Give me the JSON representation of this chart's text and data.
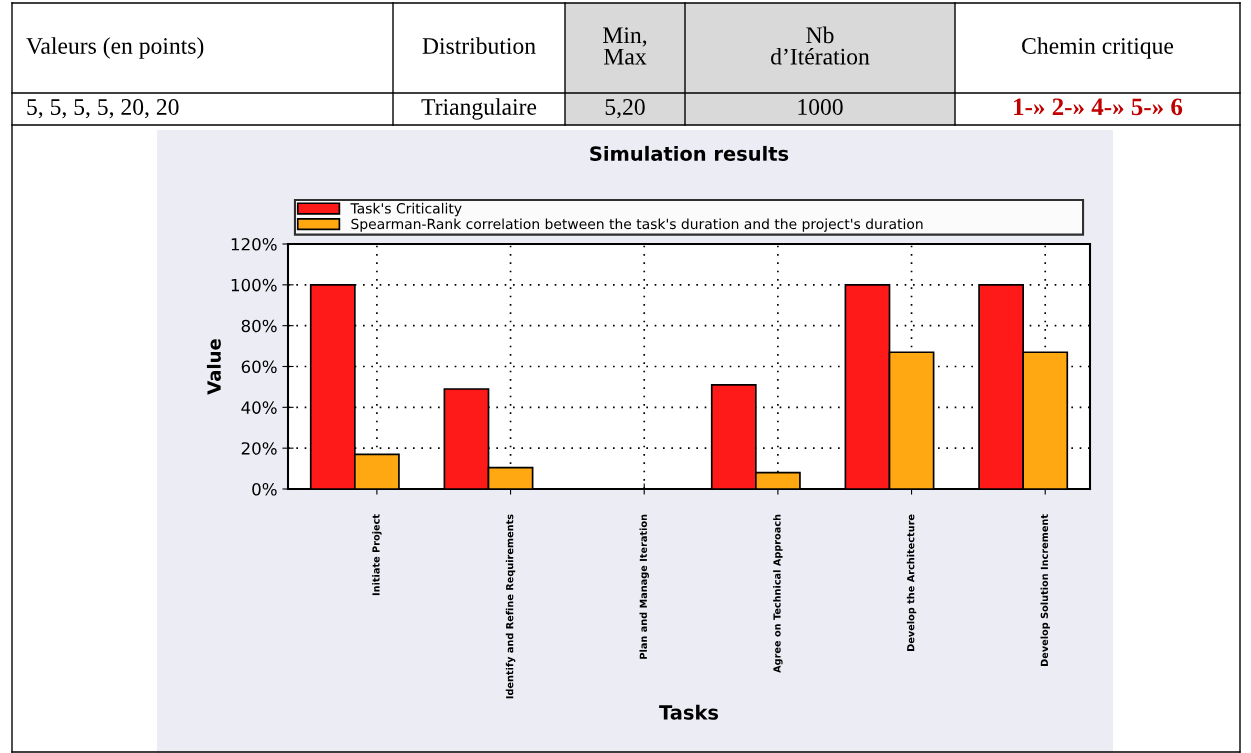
{
  "chart_data": {
    "type": "bar",
    "title": "Simulation results",
    "xlabel": "Tasks",
    "ylabel": "Value",
    "categories": [
      "Initiate Project",
      "Identify and Refine Requirements",
      "Plan and Manage Iteration",
      "Agree on Technical Approach",
      "Develop the Architecture",
      "Develop Solution Increment"
    ],
    "series": [
      {
        "name": "Task's Criticality",
        "color": "#ff1a1a",
        "values": [
          100,
          49,
          0,
          51,
          100,
          100
        ]
      },
      {
        "name": "Spearman-Rank correlation between the task's duration and the project's duration",
        "color": "#ffa812",
        "values": [
          17,
          10.5,
          0,
          8,
          67,
          67
        ]
      }
    ],
    "ylim": [
      0,
      120
    ],
    "yticks": [
      {
        "value": 0,
        "label": "0%"
      },
      {
        "value": 20,
        "label": "20%"
      },
      {
        "value": 40,
        "label": "40%"
      },
      {
        "value": 60,
        "label": "60%"
      },
      {
        "value": 80,
        "label": "80%"
      },
      {
        "value": 100,
        "label": "100%"
      },
      {
        "value": 120,
        "label": "120%"
      }
    ],
    "grid": true,
    "legend": "top",
    "annotations": [
      "Valeurs (en points)",
      "Distribution",
      "Min,\nMax",
      "Nb\nd’Itération",
      "Chemin critique",
      "5, 5, 5, 5, 20, 20",
      "Triangulaire",
      "5,20",
      "1000",
      "1-» 2-» 4-» 5-» 6"
    ]
  }
}
